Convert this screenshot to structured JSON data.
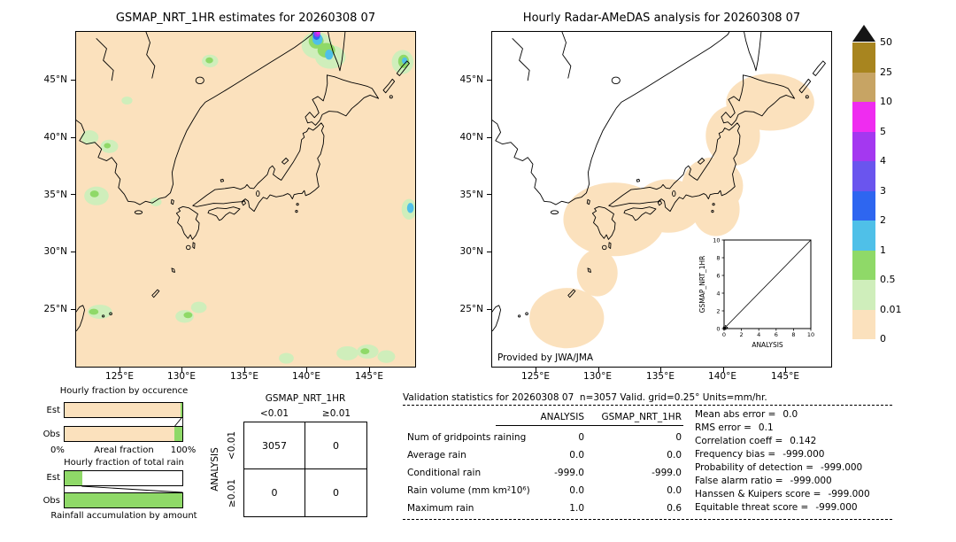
{
  "maps": {
    "left": {
      "title": "GSMAP_NRT_1HR estimates for 20260308 07"
    },
    "right": {
      "title": "Hourly Radar-AMeDAS analysis for 20260308 07",
      "credit": "Provided by JWA/JMA",
      "inset": {
        "xlabel": "ANALYSIS",
        "ylabel": "GSMAP_NRT_1HR",
        "tick_labels": [
          "0",
          "2",
          "4",
          "6",
          "8",
          "10"
        ]
      }
    }
  },
  "geo_axis": {
    "lat": [
      "45°N",
      "40°N",
      "35°N",
      "30°N",
      "25°N"
    ],
    "lon": [
      "125°E",
      "130°E",
      "135°E",
      "140°E",
      "145°E"
    ]
  },
  "colorbar": {
    "tick_labels": [
      "50",
      "25",
      "10",
      "5",
      "4",
      "3",
      "2",
      "1",
      "0.5",
      "0.01",
      "0"
    ],
    "segment_colors_top_to_bottom": [
      "#a8851f",
      "#c7a464",
      "#ef2cf0",
      "#a438f0",
      "#6a55ee",
      "#2e66f0",
      "#4fc0e8",
      "#8fd968",
      "#cfeebb",
      "#fbe1bd"
    ]
  },
  "colors": {
    "peach": "#fbe1bd",
    "pale-green": "#cfeebb",
    "green": "#8fd968",
    "cyan": "#4fc0e8",
    "blue": "#2e66f0",
    "violet": "#a438f0",
    "magenta": "#ef2cf0"
  },
  "fraction_charts": {
    "occurrence": {
      "title": "Hourly fraction by occurence",
      "row_labels": [
        "Est",
        "Obs"
      ],
      "green_pct": [
        1.5,
        7
      ],
      "axis_left": "0%",
      "axis_center": "Areal fraction",
      "axis_right": "100%"
    },
    "total_rain": {
      "title": "Hourly fraction of total rain",
      "row_labels": [
        "Est",
        "Obs"
      ],
      "green_pct": [
        15,
        100
      ],
      "caption": "Rainfall accumulation by amount"
    }
  },
  "contingency": {
    "col_header": "GSMAP_NRT_1HR",
    "row_header": "ANALYSIS",
    "col_labels": [
      "<0.01",
      "≥0.01"
    ],
    "row_labels": [
      "<0.01",
      "≥0.01"
    ],
    "values": [
      [
        "3057",
        "0"
      ],
      [
        "0",
        "0"
      ]
    ]
  },
  "stats": {
    "header": "Validation statistics for 20260308 07  n=3057 Valid. grid=0.25° Units=mm/hr.",
    "col_headers": [
      "ANALYSIS",
      "GSMAP_NRT_1HR"
    ],
    "rows": [
      {
        "label": "Num of gridpoints raining",
        "analysis": "0",
        "gsmap": "0"
      },
      {
        "label": "Average rain",
        "analysis": "0.0",
        "gsmap": "0.0"
      },
      {
        "label": "Conditional rain",
        "analysis": "-999.0",
        "gsmap": "-999.0"
      },
      {
        "label": "Rain volume (mm km²10⁶)",
        "analysis": "0.0",
        "gsmap": "0.0"
      },
      {
        "label": "Maximum rain",
        "analysis": "1.0",
        "gsmap": "0.6"
      }
    ],
    "scores": [
      {
        "label": "Mean abs error =",
        "value": "0.0"
      },
      {
        "label": "RMS error =",
        "value": "0.1"
      },
      {
        "label": "Correlation coeff =",
        "value": "0.142"
      },
      {
        "label": "Frequency bias =",
        "value": "-999.000"
      },
      {
        "label": "Probability of detection =",
        "value": "-999.000"
      },
      {
        "label": "False alarm ratio =",
        "value": "-999.000"
      },
      {
        "label": "Hanssen & Kuipers score =",
        "value": "-999.000"
      },
      {
        "label": "Equitable threat score =",
        "value": "-999.000"
      }
    ]
  },
  "chart_data": [
    {
      "type": "heatmap",
      "subplot": "left-map",
      "title": "GSMAP_NRT_1HR estimates for 20260308 07",
      "x_ticks": [
        "125°E",
        "130°E",
        "135°E",
        "140°E",
        "145°E"
      ],
      "y_ticks": [
        "45°N",
        "40°N",
        "35°N",
        "30°N",
        "25°N"
      ],
      "units": "mm/hr",
      "color_levels": [
        0,
        0.01,
        0.5,
        1,
        2,
        3,
        4,
        5,
        10,
        25,
        50
      ],
      "note": "Field ~0 mm/hr (peach) nearly everywhere; scattered 0.01-2 mm/hr patches near Korea, Yellow Sea, Okinawa, Taiwan and SE corner; one small 3-10 mm/hr cell near 48N 140E"
    },
    {
      "type": "heatmap",
      "subplot": "right-map",
      "title": "Hourly Radar-AMeDAS analysis for 20260308 07",
      "x_ticks": [
        "125°E",
        "130°E",
        "135°E",
        "140°E",
        "145°E"
      ],
      "y_ticks": [
        "45°N",
        "40°N",
        "35°N",
        "30°N",
        "25°N"
      ],
      "units": "mm/hr",
      "credit": "Provided by JWA/JMA",
      "note": "Radar coverage band along the Japanese archipelago at ~0 mm/hr (peach); white = outside coverage"
    },
    {
      "type": "scatter",
      "subplot": "inset",
      "xlabel": "ANALYSIS",
      "ylabel": "GSMAP_NRT_1HR",
      "xlim": [
        0,
        10
      ],
      "ylim": [
        0,
        10
      ],
      "x_ticks": [
        0,
        2,
        4,
        6,
        8,
        10
      ],
      "y_ticks": [
        0,
        2,
        4,
        6,
        8,
        10
      ],
      "points": [
        [
          0,
          0
        ]
      ],
      "diagonal_line": true
    },
    {
      "type": "bar",
      "subplot": "hourly-fraction-by-occurence",
      "title": "Hourly fraction by occurence",
      "orientation": "horizontal",
      "categories": [
        "Est",
        "Obs"
      ],
      "values_pct": [
        1.5,
        7
      ],
      "xlabel": "Areal fraction",
      "xlim": [
        0,
        100
      ]
    },
    {
      "type": "bar",
      "subplot": "hourly-fraction-of-total-rain",
      "title": "Hourly fraction of total rain",
      "orientation": "horizontal",
      "categories": [
        "Est",
        "Obs"
      ],
      "values_pct": [
        15,
        100
      ],
      "xlabel": "Rainfall accumulation by amount"
    },
    {
      "type": "table",
      "subplot": "contingency",
      "title": "GSMAP_NRT_1HR",
      "row_axis": "ANALYSIS",
      "columns": [
        "<0.01",
        "≥0.01"
      ],
      "rows": [
        "<0.01",
        "≥0.01"
      ],
      "values": [
        [
          3057,
          0
        ],
        [
          0,
          0
        ]
      ]
    },
    {
      "type": "table",
      "subplot": "validation-statistics",
      "columns": [
        "ANALYSIS",
        "GSMAP_NRT_1HR"
      ],
      "rows": [
        [
          "Num of gridpoints raining",
          0,
          0
        ],
        [
          "Average rain",
          0.0,
          0.0
        ],
        [
          "Conditional rain",
          -999.0,
          -999.0
        ],
        [
          "Rain volume (mm km²10⁶)",
          0.0,
          0.0
        ],
        [
          "Maximum rain",
          1.0,
          0.6
        ]
      ],
      "scores": {
        "Mean abs error": 0.0,
        "RMS error": 0.1,
        "Correlation coeff": 0.142,
        "Frequency bias": -999.0,
        "Probability of detection": -999.0,
        "False alarm ratio": -999.0,
        "Hanssen & Kuipers score": -999.0,
        "Equitable threat score": -999.0
      }
    }
  ]
}
